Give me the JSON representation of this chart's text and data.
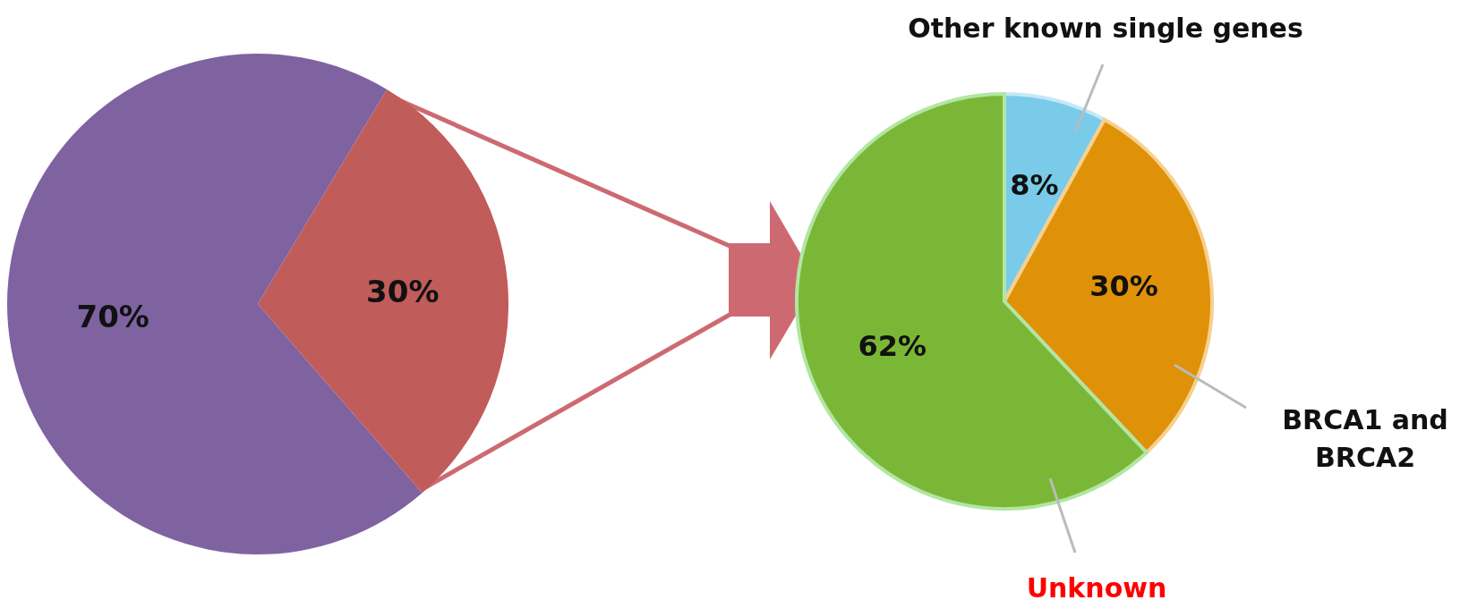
{
  "chart_data": [
    {
      "type": "pie",
      "categories": [
        null,
        null
      ],
      "values": [
        70,
        30
      ],
      "colors": [
        "#7f63a1",
        "#c05c5a"
      ],
      "value_labels": [
        "70%",
        "30%"
      ]
    },
    {
      "type": "pie",
      "categories": [
        "Other known single genes",
        "BRCA1 and BRCA2",
        "Unknown"
      ],
      "values": [
        8,
        30,
        62
      ],
      "colors": [
        "#79cbe9",
        "#df9108",
        "#7bb736"
      ],
      "value_labels": [
        "8%",
        "30%",
        "62%"
      ]
    }
  ]
}
